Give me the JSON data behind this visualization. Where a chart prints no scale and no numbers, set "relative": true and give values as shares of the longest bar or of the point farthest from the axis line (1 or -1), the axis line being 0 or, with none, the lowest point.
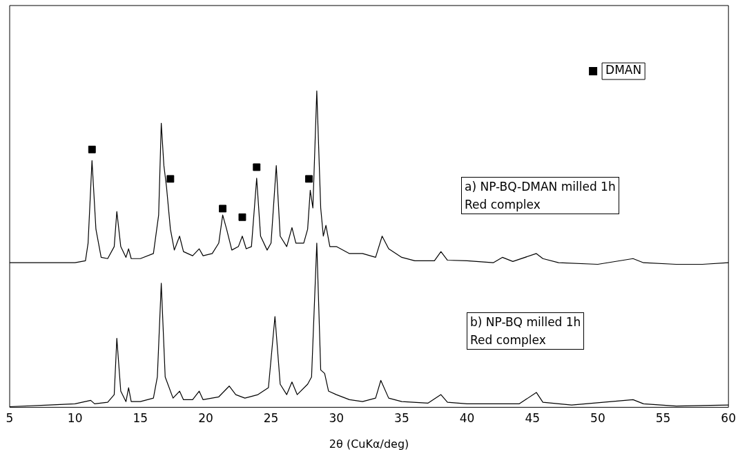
{
  "chart_data": {
    "type": "line",
    "relative": true,
    "xlabel": "2θ (CuKα/deg)",
    "xlim": [
      5,
      60
    ],
    "xticks": [
      5,
      10,
      15,
      20,
      25,
      30,
      35,
      40,
      45,
      50,
      55,
      60
    ],
    "grid": false,
    "legend": "top right",
    "marker": "none",
    "line_style": "solid",
    "annotations": [
      "a) NP-BQ-DMAN milled 1h\nRed complex",
      "b) NP-BQ milled 1h\nRed complex"
    ],
    "series": [
      {
        "color": "#000000",
        "x": [
          5,
          8,
          10,
          10.8,
          11.0,
          11.3,
          11.6,
          12,
          12.5,
          13.0,
          13.2,
          13.5,
          13.9,
          14.1,
          14.3,
          15,
          16,
          16.4,
          16.6,
          16.8,
          17.0,
          17.3,
          17.6,
          18.0,
          18.3,
          19.0,
          19.5,
          19.8,
          20.5,
          21.0,
          21.3,
          21.6,
          22.0,
          22.5,
          22.8,
          23.1,
          23.5,
          23.9,
          24.2,
          24.7,
          25.0,
          25.4,
          25.7,
          26.2,
          26.6,
          26.9,
          27.5,
          27.8,
          28.0,
          28.2,
          28.5,
          28.8,
          29.0,
          29.2,
          29.5,
          30,
          31,
          32,
          33,
          33.5,
          34,
          35,
          36,
          37.5,
          38,
          38.5,
          40,
          42,
          42.7,
          43.5,
          45.3,
          45.8,
          47,
          50,
          52.7,
          53.5,
          56,
          58,
          60
        ],
        "values": [
          0.457,
          0.457,
          0.457,
          0.463,
          0.519,
          0.78,
          0.563,
          0.474,
          0.47,
          0.508,
          0.619,
          0.508,
          0.474,
          0.501,
          0.47,
          0.47,
          0.486,
          0.608,
          0.898,
          0.764,
          0.697,
          0.563,
          0.497,
          0.541,
          0.492,
          0.479,
          0.501,
          0.479,
          0.486,
          0.519,
          0.608,
          0.563,
          0.497,
          0.508,
          0.541,
          0.501,
          0.508,
          0.724,
          0.541,
          0.497,
          0.519,
          0.764,
          0.541,
          0.508,
          0.568,
          0.519,
          0.519,
          0.563,
          0.686,
          0.63,
          1,
          0.63,
          0.541,
          0.575,
          0.508,
          0.508,
          0.486,
          0.486,
          0.474,
          0.541,
          0.501,
          0.474,
          0.463,
          0.463,
          0.492,
          0.465,
          0.463,
          0.457,
          0.474,
          0.461,
          0.486,
          0.47,
          0.457,
          0.452,
          0.47,
          0.457,
          0.452,
          0.452,
          0.457
        ]
      },
      {
        "color": "#000000",
        "x": [
          5,
          8,
          10,
          11.2,
          11.5,
          12.5,
          13.0,
          13.2,
          13.5,
          13.9,
          14.1,
          14.3,
          15,
          16,
          16.3,
          16.6,
          16.9,
          17.5,
          18.0,
          18.3,
          19.0,
          19.5,
          19.8,
          21,
          21.8,
          22.3,
          23,
          24,
          24.8,
          25.3,
          25.7,
          26.2,
          26.6,
          27.0,
          27.8,
          28.1,
          28.5,
          28.8,
          29.1,
          29.4,
          30,
          31,
          32,
          33,
          33.4,
          34,
          35,
          37,
          38,
          38.5,
          40,
          44,
          45.3,
          45.8,
          48,
          52.7,
          53.5,
          56,
          60
        ],
        "values": [
          0.002,
          0.007,
          0.011,
          0.022,
          0.011,
          0.016,
          0.04,
          0.218,
          0.051,
          0.018,
          0.062,
          0.018,
          0.018,
          0.029,
          0.096,
          0.392,
          0.096,
          0.029,
          0.051,
          0.024,
          0.024,
          0.051,
          0.024,
          0.033,
          0.067,
          0.04,
          0.029,
          0.04,
          0.062,
          0.287,
          0.073,
          0.04,
          0.08,
          0.04,
          0.073,
          0.096,
          0.519,
          0.118,
          0.107,
          0.051,
          0.04,
          0.024,
          0.018,
          0.029,
          0.085,
          0.029,
          0.018,
          0.013,
          0.04,
          0.016,
          0.011,
          0.011,
          0.047,
          0.016,
          0.007,
          0.024,
          0.011,
          0.004,
          0.007
        ]
      },
      {
        "type": "scatter",
        "name": "DMAN",
        "color": "#000000",
        "marker": "square",
        "x": [
          11.3,
          17.3,
          21.3,
          22.8,
          23.9,
          27.9
        ],
        "values": [
          0.815,
          0.722,
          0.628,
          0.601,
          0.759,
          0.722
        ]
      }
    ]
  }
}
